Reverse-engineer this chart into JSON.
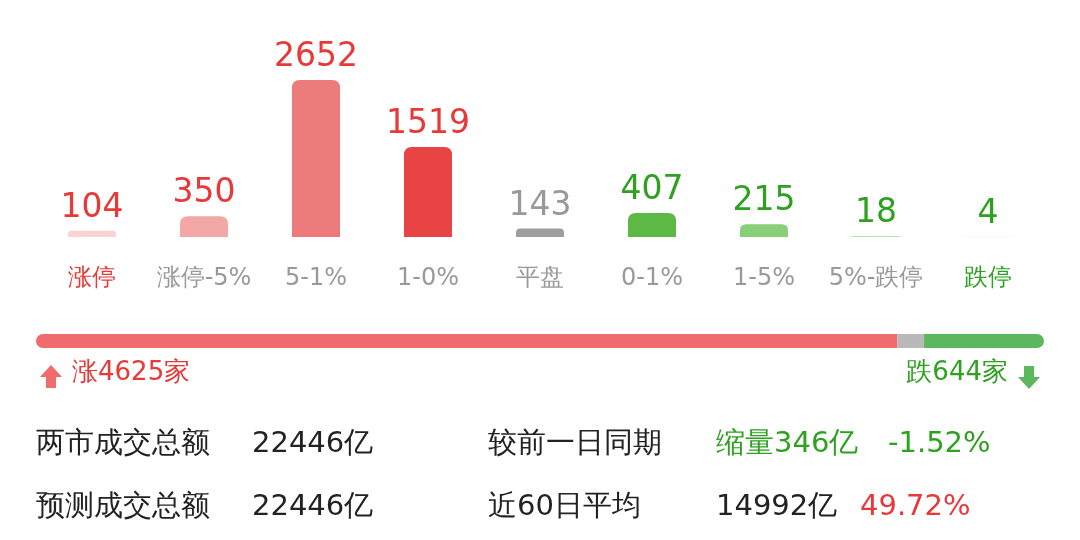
{
  "chart_data": [
    {
      "type": "bar",
      "categories": [
        "涨停",
        "涨停-5%",
        "5-1%",
        "1-0%",
        "平盘",
        "0-1%",
        "1-5%",
        "5%-跌停",
        "跌停"
      ],
      "values": [
        104,
        350,
        2652,
        1519,
        143,
        407,
        215,
        18,
        4
      ],
      "colors": [
        "#fad4d4",
        "#f4a7a7",
        "#ee7b7b",
        "#e84444",
        "#9e9e9e",
        "#5cb946",
        "#88cf78",
        "#b5e2aa",
        "#d8f0d2"
      ],
      "data_labels": true
    },
    {
      "type": "bar",
      "orientation": "horizontal",
      "stacked": true,
      "categories": [
        null
      ],
      "series": [
        {
          "color": "#f06b6b",
          "values": [
            4625
          ],
          "value_labels": [
            "涨4625家"
          ]
        },
        {
          "color": "#b9b9b9",
          "values": [
            143
          ]
        },
        {
          "color": "#5cb85c",
          "values": [
            644
          ],
          "value_labels": [
            "跌644家"
          ]
        }
      ]
    },
    {
      "type": "other",
      "annotations": [
        "两市成交总额",
        "22446亿",
        "较前一日同期",
        "缩量346亿",
        "-1.52%",
        "预测成交总额",
        "22446亿",
        "近60日平均",
        "14992亿",
        "49.72%"
      ]
    }
  ]
}
